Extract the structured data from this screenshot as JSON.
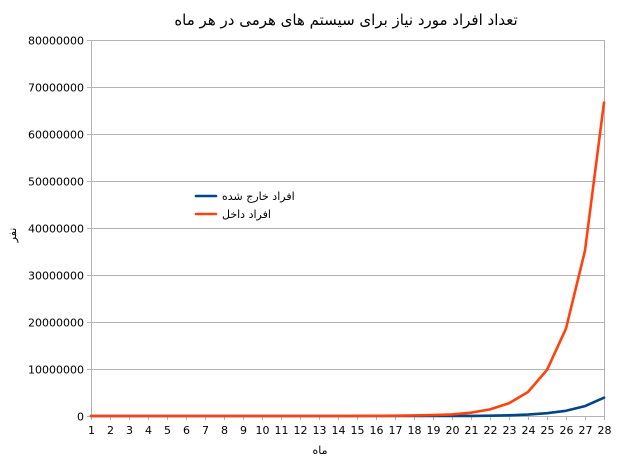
{
  "chart_data": {
    "type": "line",
    "title": "تعداد افراد مورد نیاز برای سیستم های هرمی در هر ماه",
    "xlabel": "ماه",
    "ylabel": "نفر",
    "ylim": [
      0,
      80000000
    ],
    "y_ticks": [
      0,
      10000000,
      20000000,
      30000000,
      40000000,
      50000000,
      60000000,
      70000000,
      80000000
    ],
    "x": [
      1,
      2,
      3,
      4,
      5,
      6,
      7,
      8,
      9,
      10,
      11,
      12,
      13,
      14,
      15,
      16,
      17,
      18,
      19,
      20,
      21,
      22,
      23,
      24,
      25,
      26,
      27,
      28
    ],
    "grid": true,
    "legend_position": "left-middle",
    "series": [
      {
        "name": "افراد خارج شده",
        "color": "#004586",
        "values": [
          0,
          0,
          0,
          0,
          0,
          0,
          0,
          0,
          0,
          0,
          0,
          0,
          0,
          0,
          0,
          0,
          0,
          0,
          5000,
          15000,
          30000,
          70000,
          150000,
          300000,
          600000,
          1100000,
          2100000,
          3900000
        ]
      },
      {
        "name": "افراد داخل",
        "color": "#ff420e",
        "values": [
          0,
          0,
          0,
          0,
          0,
          0,
          0,
          0,
          0,
          0,
          0,
          0,
          0,
          0,
          20000,
          40000,
          70000,
          120000,
          200000,
          350000,
          700000,
          1400000,
          2700000,
          5100000,
          9800000,
          18600000,
          35200000,
          66700000
        ]
      }
    ]
  }
}
